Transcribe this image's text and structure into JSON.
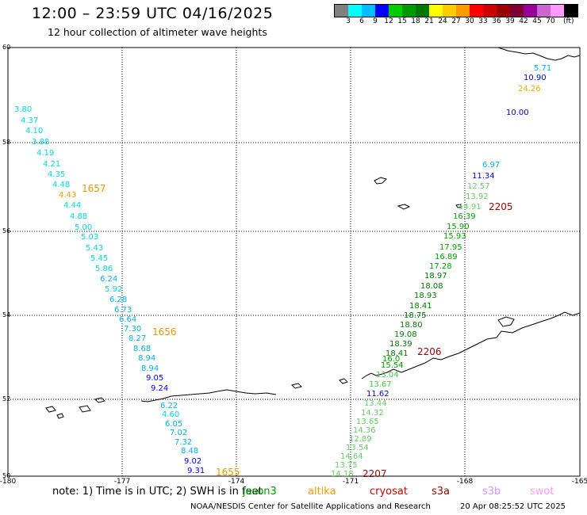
{
  "header": {
    "title": "12:00 – 23:59 UTC 04/16/2025",
    "subtitle": "12 hour collection of altimeter wave heights"
  },
  "legend": {
    "colors": [
      "#808080",
      "#00ffff",
      "#00bfff",
      "#0000ff",
      "#00cc00",
      "#009900",
      "#007700",
      "#ffff00",
      "#ffcc00",
      "#ff9900",
      "#ff0000",
      "#cc0000",
      "#990000",
      "#7f0033",
      "#990099",
      "#cc66cc",
      "#ff99ff",
      "#000000"
    ],
    "labels": [
      "3",
      "6",
      "9",
      "12",
      "15",
      "18",
      "21",
      "24",
      "27",
      "30",
      "33",
      "36",
      "39",
      "42",
      "45",
      "70"
    ],
    "unit": "(ft)"
  },
  "map": {
    "lat_labels": [
      "60",
      "58",
      "56",
      "54",
      "52",
      "50"
    ],
    "lon_labels": [
      "-180",
      "-177",
      "-174",
      "-171",
      "-168",
      "-165"
    ]
  },
  "tracks": {
    "west": {
      "values": [
        "3.80",
        "4.37",
        "4.10",
        "3.88",
        "4.19",
        "4.21",
        "4.35",
        "4.48",
        "4.43",
        "4.44",
        "4.88",
        "5.00",
        "5.03",
        "5.43",
        "5.45",
        "5.86",
        "6.24",
        "5.92",
        "6.28",
        "6.73",
        "6.64",
        "7.30",
        "8.27",
        "8.68",
        "8.94",
        "8.94",
        "9.05",
        "9.24",
        "",
        "6.22",
        "4.60",
        "6.05",
        "7.02",
        "7.32",
        "8.48",
        "9.02",
        "9.31"
      ],
      "times": [
        "1657",
        "1656",
        "1655"
      ]
    },
    "east": {
      "values": [
        "5.71",
        "10.90",
        "24.26",
        "10.00",
        "6.97",
        "11.34",
        "12.57",
        "13.92",
        "14.91",
        "16.39",
        "15.90",
        "15.93",
        "17.95",
        "16.89",
        "17.28",
        "18.97",
        "18.08",
        "18.93",
        "18.41",
        "18.75",
        "18.80",
        "19.08",
        "18.39",
        "18.41",
        "16.0",
        "15.54",
        "13.04",
        "13.67",
        "11.62",
        "13.44",
        "14.32",
        "13.65",
        "14.36",
        "12.89",
        "13.54",
        "14.64",
        "13.75",
        "14.18"
      ],
      "times": [
        "2205",
        "2206",
        "2207"
      ]
    }
  },
  "footer": {
    "note": "note:  1) Time is in UTC; 2) SWH is in feet",
    "satellites": [
      {
        "name": "jason3",
        "color": "#009900"
      },
      {
        "name": "altika",
        "color": "#ff9900"
      },
      {
        "name": "cryosat",
        "color": "#cc0000"
      },
      {
        "name": "s3a",
        "color": "#990000"
      },
      {
        "name": "s3b",
        "color": "#cc99ff"
      },
      {
        "name": "swot",
        "color": "#ff99ff"
      }
    ],
    "credit": "NOAA/NESDIS Center for Satellite Applications and Research",
    "generated": "20 Apr 08:25:52 UTC 2025"
  }
}
